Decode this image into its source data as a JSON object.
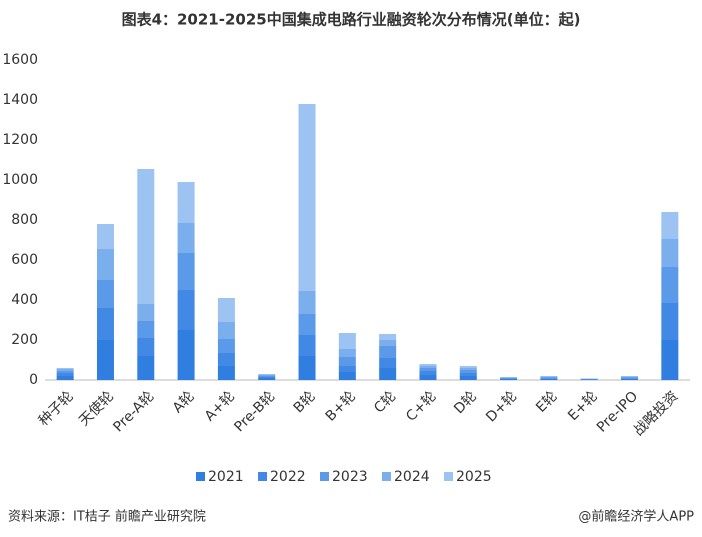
{
  "chart_data": {
    "type": "stacked_bar",
    "title": "图表4：2021-2025中国集成电路行业融资轮次分布情况(单位：起)",
    "categories": [
      "种子轮",
      "天使轮",
      "Pre-A轮",
      "A轮",
      "A+轮",
      "Pre-B轮",
      "B轮",
      "B+轮",
      "C轮",
      "C+轮",
      "D轮",
      "D+轮",
      "E轮",
      "E+轮",
      "Pre-IPO",
      "战略投资"
    ],
    "series": [
      {
        "name": "2021",
        "color": "#2f7ee0",
        "values": [
          20,
          200,
          120,
          250,
          70,
          10,
          120,
          40,
          60,
          25,
          20,
          5,
          6,
          3,
          6,
          200
        ]
      },
      {
        "name": "2022",
        "color": "#4189e4",
        "values": [
          15,
          160,
          90,
          200,
          65,
          8,
          105,
          30,
          50,
          20,
          15,
          4,
          5,
          2,
          5,
          185
        ]
      },
      {
        "name": "2023",
        "color": "#5b9ae8",
        "values": [
          10,
          140,
          85,
          185,
          70,
          5,
          105,
          45,
          60,
          15,
          15,
          3,
          4,
          1,
          4,
          180
        ]
      },
      {
        "name": "2024",
        "color": "#7aaeed",
        "values": [
          10,
          155,
          85,
          150,
          85,
          4,
          115,
          40,
          30,
          10,
          10,
          2,
          3,
          1,
          3,
          140
        ]
      },
      {
        "name": "2025",
        "color": "#9cc3f2",
        "values": [
          5,
          125,
          675,
          205,
          120,
          3,
          935,
          80,
          30,
          10,
          10,
          1,
          2,
          1,
          2,
          135
        ]
      }
    ],
    "ylim": [
      0,
      1600
    ],
    "yticks": [
      0,
      200,
      400,
      600,
      800,
      1000,
      1200,
      1400,
      1600
    ],
    "source": "资料来源：IT桔子 前瞻产业研究院",
    "credit": "@前瞻经济学人APP"
  }
}
